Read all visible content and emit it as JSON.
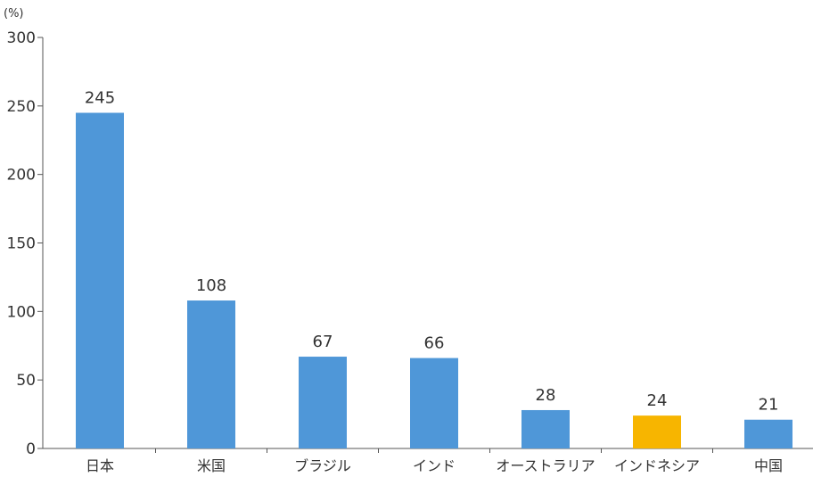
{
  "chart_data": {
    "type": "bar",
    "unit_label": "(%)",
    "categories": [
      "日本",
      "米国",
      "ブラジル",
      "インド",
      "オーストラリア",
      "インドネシア",
      "中国"
    ],
    "values": [
      245,
      108,
      67,
      66,
      28,
      24,
      21
    ],
    "highlight_category": "インドネシア",
    "ylim": [
      0,
      300
    ],
    "yticks": [
      0,
      50,
      100,
      150,
      200,
      250,
      300
    ],
    "grid": false,
    "legend": "none",
    "colors": {
      "bar": "#4f97d8",
      "highlight": "#f7b500",
      "axis": "#555555",
      "text": "#333333"
    }
  }
}
